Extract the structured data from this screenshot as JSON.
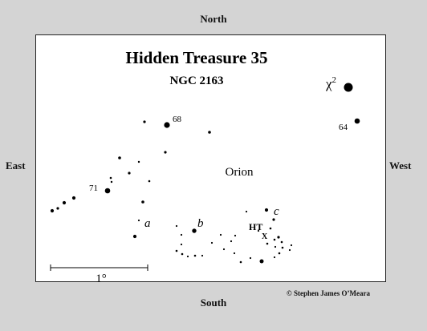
{
  "directions": {
    "north": "North",
    "south": "South",
    "east": "East",
    "west": "West"
  },
  "chart": {
    "title": "Hidden Treasure 35",
    "subtitle": "NGC 2163",
    "constellation": "Orion",
    "marker_ht": "HT",
    "marker_x": "X",
    "scale_label": "1°",
    "star_labels": {
      "chi2": "χ",
      "chi2_sup": "2",
      "s64": "64",
      "s68": "68",
      "s71": "71",
      "a": "a",
      "b": "b",
      "c": "c"
    }
  },
  "credit": "© Stephen James O’Meara",
  "colors": {
    "background": "#d4d4d4",
    "panel": "#ffffff",
    "ink": "#000000"
  }
}
